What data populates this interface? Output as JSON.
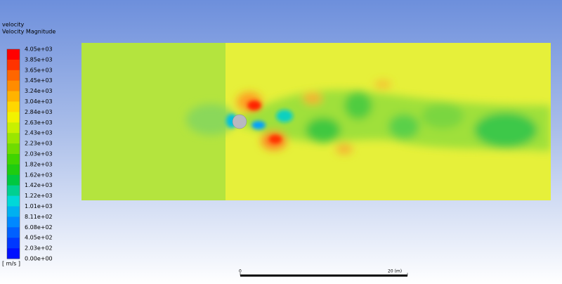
{
  "legend": {
    "title": "velocity",
    "subtitle": "Velocity Magnitude",
    "unit": "[ m/s ]",
    "levels": [
      "4.05e+03",
      "3.85e+03",
      "3.65e+03",
      "3.45e+03",
      "3.24e+03",
      "3.04e+03",
      "2.84e+03",
      "2.63e+03",
      "2.43e+03",
      "2.23e+03",
      "2.03e+03",
      "1.82e+03",
      "1.62e+03",
      "1.42e+03",
      "1.22e+03",
      "1.01e+03",
      "8.11e+02",
      "6.08e+02",
      "4.05e+02",
      "2.03e+02",
      "0.00e+00"
    ],
    "band_colors": [
      "#ff0000",
      "#ff3300",
      "#ff6600",
      "#ff8c00",
      "#ffb300",
      "#ffd700",
      "#f2f200",
      "#c8f000",
      "#9ae600",
      "#6fdc00",
      "#40d400",
      "#1fcc10",
      "#00c840",
      "#00d090",
      "#00d8d8",
      "#00b0f0",
      "#0088ff",
      "#0060ff",
      "#0038ff",
      "#0010ff"
    ]
  },
  "scale_bar": {
    "start": "0",
    "end": "20 (m)"
  }
}
